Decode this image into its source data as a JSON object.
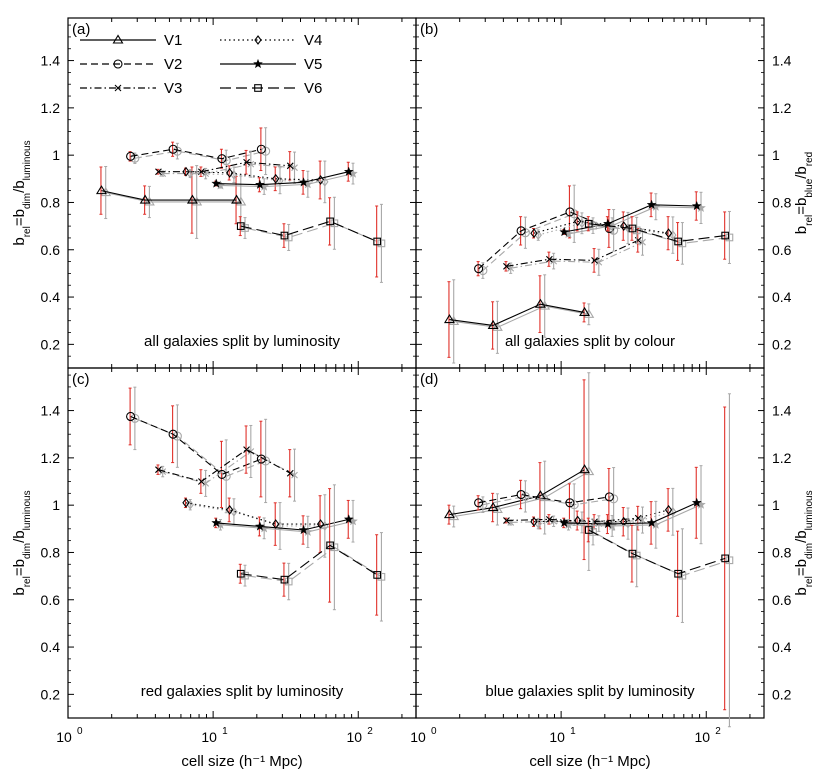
{
  "figure": {
    "xlabel": "cell size (h⁻¹ Mpc)",
    "ylabel_lum": "b_rel=b_dim/b_luminous",
    "ylabel_col": "b_rel=b_blue/b_red",
    "xlim": [
      1,
      250
    ],
    "ylim": [
      0.1,
      1.58
    ],
    "yticks": [
      0.2,
      0.4,
      0.6,
      0.8,
      1.0,
      1.2,
      1.4
    ],
    "ytick_labels": [
      "0.2",
      "0.4",
      "0.6",
      "0.8",
      "1",
      "1.2",
      "1.4"
    ],
    "xtick_labels": [
      "10",
      "10",
      "10"
    ],
    "xtick_exponents": [
      "0",
      "1",
      "2"
    ]
  },
  "legend": [
    {
      "name": "V1",
      "dash": "solid",
      "marker": "triangle"
    },
    {
      "name": "V2",
      "dash": "dashed",
      "marker": "circle"
    },
    {
      "name": "V3",
      "dash": "dashdot",
      "marker": "cross"
    },
    {
      "name": "V4",
      "dash": "dotted",
      "marker": "diamond"
    },
    {
      "name": "V5",
      "dash": "solid",
      "marker": "star"
    },
    {
      "name": "V6",
      "dash": "longdash",
      "marker": "square"
    }
  ],
  "chart_data": [
    {
      "type": "scatter",
      "panel": "(a)",
      "title": "all galaxies split by luminosity",
      "series": [
        {
          "name": "V1",
          "x": [
            1.7,
            3.4,
            7.2,
            14.5
          ],
          "y": [
            0.85,
            0.81,
            0.81,
            0.81
          ],
          "err": [
            0.1,
            0.06,
            0.14,
            0.1
          ]
        },
        {
          "name": "V2",
          "x": [
            2.7,
            5.3,
            11.5,
            21.5
          ],
          "y": [
            0.995,
            1.025,
            0.985,
            1.025
          ],
          "err": [
            0.02,
            0.03,
            0.04,
            0.09
          ]
        },
        {
          "name": "V3",
          "x": [
            4.2,
            8.3,
            17.0,
            34.0
          ],
          "y": [
            0.93,
            0.93,
            0.97,
            0.955
          ],
          "err": [
            0.01,
            0.02,
            0.05,
            0.06
          ]
        },
        {
          "name": "V4",
          "x": [
            6.5,
            13.0,
            27.0,
            55.0
          ],
          "y": [
            0.93,
            0.925,
            0.9,
            0.895
          ],
          "err": [
            0.015,
            0.03,
            0.05,
            0.08
          ]
        },
        {
          "name": "V5",
          "x": [
            10.5,
            21.0,
            42.0,
            86.0
          ],
          "y": [
            0.88,
            0.875,
            0.885,
            0.93
          ],
          "err": [
            0.01,
            0.03,
            0.05,
            0.04
          ]
        },
        {
          "name": "V6",
          "x": [
            15.5,
            31.0,
            64.0,
            135.0
          ],
          "y": [
            0.7,
            0.66,
            0.72,
            0.635
          ],
          "err": [
            0.04,
            0.05,
            0.1,
            0.15
          ]
        }
      ]
    },
    {
      "type": "scatter",
      "panel": "(b)",
      "title": "all galaxies split by colour",
      "series": [
        {
          "name": "V1",
          "x": [
            1.7,
            3.4,
            7.2,
            14.5
          ],
          "y": [
            0.305,
            0.28,
            0.37,
            0.335
          ],
          "err": [
            0.16,
            0.1,
            0.12,
            0.04
          ]
        },
        {
          "name": "V2",
          "x": [
            2.7,
            5.3,
            11.5,
            21.5
          ],
          "y": [
            0.52,
            0.68,
            0.76,
            0.69
          ],
          "err": [
            0.03,
            0.06,
            0.11,
            0.08
          ]
        },
        {
          "name": "V3",
          "x": [
            4.2,
            8.3,
            17.0,
            34.0
          ],
          "y": [
            0.53,
            0.56,
            0.555,
            0.64
          ],
          "err": [
            0.02,
            0.03,
            0.05,
            0.05
          ]
        },
        {
          "name": "V4",
          "x": [
            6.5,
            13.0,
            27.0,
            55.0
          ],
          "y": [
            0.67,
            0.72,
            0.7,
            0.67
          ],
          "err": [
            0.02,
            0.04,
            0.06,
            0.07
          ]
        },
        {
          "name": "V5",
          "x": [
            10.5,
            21.0,
            42.0,
            86.0
          ],
          "y": [
            0.675,
            0.71,
            0.79,
            0.785
          ],
          "err": [
            0.01,
            0.03,
            0.05,
            0.06
          ]
        },
        {
          "name": "V6",
          "x": [
            15.5,
            31.0,
            64.0,
            135.0
          ],
          "y": [
            0.71,
            0.69,
            0.635,
            0.66
          ],
          "err": [
            0.03,
            0.05,
            0.08,
            0.1
          ]
        }
      ]
    },
    {
      "type": "scatter",
      "panel": "(c)",
      "title": "red galaxies split by luminosity",
      "series": [
        {
          "name": "V2",
          "x": [
            2.7,
            5.3,
            11.5,
            21.5
          ],
          "y": [
            1.375,
            1.3,
            1.13,
            1.195
          ],
          "err": [
            0.12,
            0.12,
            0.14,
            0.16
          ]
        },
        {
          "name": "V3",
          "x": [
            4.2,
            8.3,
            17.0,
            34.0
          ],
          "y": [
            1.15,
            1.1,
            1.235,
            1.135
          ],
          "err": [
            0.02,
            0.05,
            0.1,
            0.1
          ]
        },
        {
          "name": "V4",
          "x": [
            6.5,
            13.0,
            27.0,
            55.0
          ],
          "y": [
            1.01,
            0.98,
            0.92,
            0.92
          ],
          "err": [
            0.02,
            0.05,
            0.09,
            0.12
          ]
        },
        {
          "name": "V5",
          "x": [
            10.5,
            21.0,
            42.0,
            86.0
          ],
          "y": [
            0.925,
            0.91,
            0.895,
            0.94
          ],
          "err": [
            0.02,
            0.04,
            0.06,
            0.08
          ]
        },
        {
          "name": "V6",
          "x": [
            15.5,
            31.0,
            64.0,
            135.0
          ],
          "y": [
            0.71,
            0.685,
            0.83,
            0.705
          ],
          "err": [
            0.04,
            0.07,
            0.24,
            0.17
          ]
        }
      ]
    },
    {
      "type": "scatter",
      "panel": "(d)",
      "title": "blue galaxies split by luminosity",
      "series": [
        {
          "name": "V1",
          "x": [
            1.7,
            3.4,
            7.2,
            14.5
          ],
          "y": [
            0.96,
            0.99,
            1.04,
            1.15
          ],
          "err": [
            0.04,
            0.06,
            0.14,
            0.38
          ]
        },
        {
          "name": "V2",
          "x": [
            2.7,
            5.3,
            11.5,
            21.5
          ],
          "y": [
            1.01,
            1.045,
            1.01,
            1.035
          ],
          "err": [
            0.03,
            0.06,
            0.08,
            0.12
          ]
        },
        {
          "name": "V3",
          "x": [
            4.2,
            8.3,
            17.0,
            34.0
          ],
          "y": [
            0.935,
            0.94,
            0.93,
            0.945
          ],
          "err": [
            0.01,
            0.02,
            0.03,
            0.05
          ]
        },
        {
          "name": "V4",
          "x": [
            6.5,
            13.0,
            27.0,
            55.0
          ],
          "y": [
            0.93,
            0.935,
            0.93,
            0.98
          ],
          "err": [
            0.02,
            0.04,
            0.06,
            0.09
          ]
        },
        {
          "name": "V5",
          "x": [
            10.5,
            21.0,
            42.0,
            86.0
          ],
          "y": [
            0.925,
            0.92,
            0.925,
            1.01
          ],
          "err": [
            0.02,
            0.04,
            0.09,
            0.15
          ]
        },
        {
          "name": "V6",
          "x": [
            15.5,
            31.0,
            64.0,
            135.0
          ],
          "y": [
            0.895,
            0.795,
            0.71,
            0.775
          ],
          "err": [
            0.05,
            0.12,
            0.18,
            0.64
          ]
        }
      ]
    }
  ]
}
